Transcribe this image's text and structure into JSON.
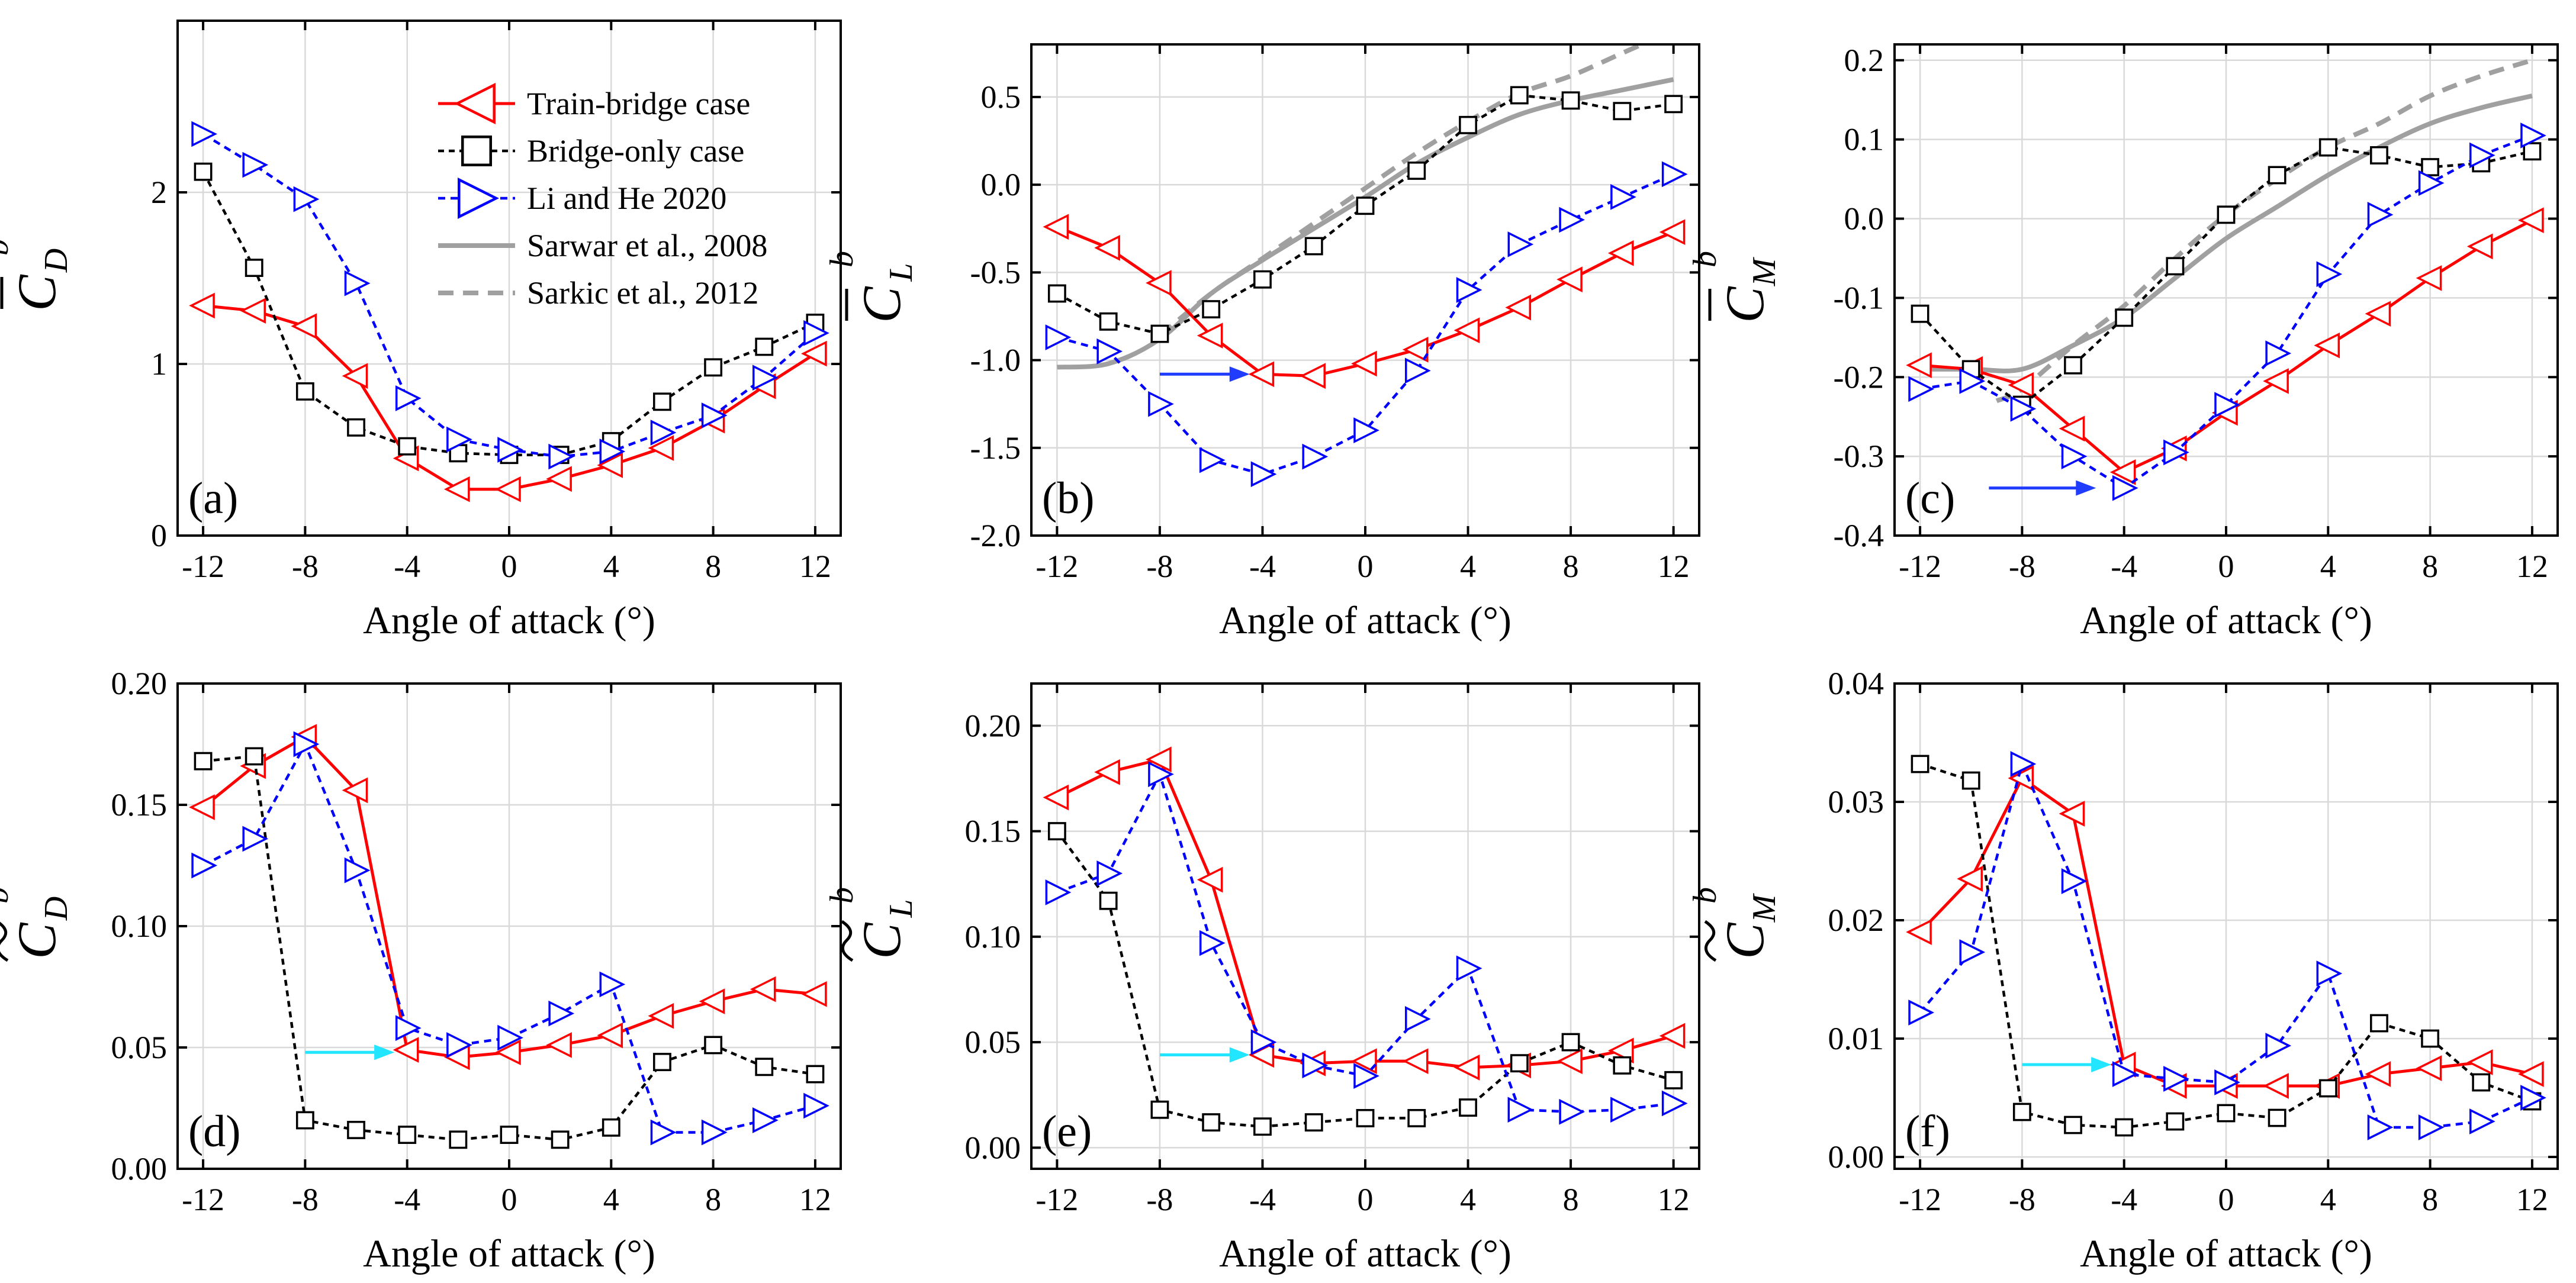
{
  "figure": {
    "xlabel": "Angle of  attack (°)",
    "x_ticks": [
      -12,
      -8,
      -4,
      0,
      4,
      8,
      12
    ],
    "colors": {
      "train_bridge": "#ff0000",
      "bridge_only": "#000000",
      "li_he": "#0000ff",
      "sarwar": "#a0a0a0",
      "sarkic": "#a0a0a0",
      "arrow_blue": "#1f3cff",
      "arrow_cyan": "#22e5ff"
    },
    "legend": [
      {
        "key": "train_bridge",
        "label": "Train-bridge case"
      },
      {
        "key": "bridge_only",
        "label": "Bridge-only case"
      },
      {
        "key": "li_he",
        "label": "Li and He 2020"
      },
      {
        "key": "sarwar",
        "label": "Sarwar et al., 2008"
      },
      {
        "key": "sarkic",
        "label": "Sarkic et al., 2012"
      }
    ]
  },
  "chart_data": [
    {
      "type": "line",
      "panel_label": "(a)",
      "ylabel_symbol": "C",
      "ylabel_sub": "D",
      "ylabel_sup": "b",
      "ylabel_accent": "bar",
      "xlim": [
        -13,
        13
      ],
      "ylim": [
        0,
        3.0
      ],
      "yticks": [
        0,
        1,
        2
      ],
      "ytick_labels": [
        "0",
        "1",
        "2"
      ],
      "show_legend": true,
      "series": [
        {
          "key": "train_bridge",
          "name": "Train-bridge case",
          "x": [
            -12,
            -10,
            -8,
            -6,
            -4,
            -2,
            0,
            2,
            4,
            6,
            8,
            10,
            12
          ],
          "values": [
            1.34,
            1.31,
            1.22,
            0.93,
            0.45,
            0.27,
            0.27,
            0.33,
            0.41,
            0.51,
            0.67,
            0.87,
            1.06
          ]
        },
        {
          "key": "bridge_only",
          "name": "Bridge-only case",
          "x": [
            -12,
            -10,
            -8,
            -6,
            -4,
            -2,
            0,
            2,
            4,
            6,
            8,
            10,
            12
          ],
          "values": [
            2.12,
            1.56,
            0.84,
            0.63,
            0.52,
            0.48,
            0.47,
            0.47,
            0.55,
            0.78,
            0.98,
            1.1,
            1.24
          ]
        },
        {
          "key": "li_he",
          "name": "Li and He 2020",
          "x": [
            -12,
            -10,
            -8,
            -6,
            -4,
            -2,
            0,
            2,
            4,
            6,
            8,
            10,
            12
          ],
          "values": [
            2.34,
            2.16,
            1.96,
            1.47,
            0.8,
            0.56,
            0.5,
            0.46,
            0.49,
            0.6,
            0.7,
            0.92,
            1.18
          ]
        }
      ],
      "annotations": []
    },
    {
      "type": "line",
      "panel_label": "(b)",
      "ylabel_symbol": "C",
      "ylabel_sub": "L",
      "ylabel_sup": "b",
      "ylabel_accent": "bar",
      "xlim": [
        -13,
        13
      ],
      "ylim": [
        -2.0,
        0.8
      ],
      "yticks": [
        -2.0,
        -1.5,
        -1.0,
        -0.5,
        0.0,
        0.5
      ],
      "ytick_labels": [
        "-2.0",
        "-1.5",
        "-1.0",
        "-0.5",
        "0.0",
        "0.5"
      ],
      "show_legend": false,
      "series": [
        {
          "key": "train_bridge",
          "name": "Train-bridge case",
          "x": [
            -12,
            -10,
            -8,
            -6,
            -4,
            -2,
            0,
            2,
            4,
            6,
            8,
            10,
            12
          ],
          "values": [
            -0.24,
            -0.36,
            -0.56,
            -0.86,
            -1.08,
            -1.09,
            -1.02,
            -0.94,
            -0.83,
            -0.7,
            -0.54,
            -0.39,
            -0.27
          ]
        },
        {
          "key": "bridge_only",
          "name": "Bridge-only case",
          "x": [
            -12,
            -10,
            -8,
            -6,
            -4,
            -2,
            0,
            2,
            4,
            6,
            8,
            10,
            12
          ],
          "values": [
            -0.62,
            -0.78,
            -0.85,
            -0.71,
            -0.54,
            -0.35,
            -0.12,
            0.08,
            0.34,
            0.51,
            0.48,
            0.42,
            0.46
          ]
        },
        {
          "key": "li_he",
          "name": "Li and He 2020",
          "x": [
            -12,
            -10,
            -8,
            -6,
            -4,
            -2,
            0,
            2,
            4,
            6,
            8,
            10,
            12
          ],
          "values": [
            -0.87,
            -0.95,
            -1.25,
            -1.57,
            -1.65,
            -1.55,
            -1.4,
            -1.06,
            -0.6,
            -0.34,
            -0.2,
            -0.07,
            0.06
          ]
        },
        {
          "key": "sarwar",
          "name": "Sarwar et al., 2008",
          "x": [
            -12,
            -10,
            -8,
            -6,
            -4,
            -2,
            0,
            2,
            4,
            6,
            8,
            10,
            12
          ],
          "values": [
            -1.04,
            -1.02,
            -0.88,
            -0.62,
            -0.43,
            -0.25,
            -0.07,
            0.12,
            0.27,
            0.4,
            0.48,
            0.54,
            0.6
          ]
        },
        {
          "key": "sarkic",
          "name": "Sarkic et al., 2012",
          "x": [
            -8,
            -6,
            -4,
            -2,
            0,
            2,
            4,
            6,
            8,
            10,
            12
          ],
          "values": [
            -0.86,
            -0.62,
            -0.42,
            -0.22,
            -0.02,
            0.18,
            0.36,
            0.52,
            0.62,
            0.75,
            0.88
          ]
        }
      ],
      "annotations": [
        {
          "color_key": "arrow_blue",
          "from": [
            -8.0,
            -1.08
          ],
          "to": [
            -4.5,
            -1.08
          ]
        }
      ]
    },
    {
      "type": "line",
      "panel_label": "(c)",
      "ylabel_symbol": "C",
      "ylabel_sub": "M",
      "ylabel_sup": "b",
      "ylabel_accent": "bar",
      "xlim": [
        -13,
        13
      ],
      "ylim": [
        -0.4,
        0.22
      ],
      "yticks": [
        -0.4,
        -0.3,
        -0.2,
        -0.1,
        0.0,
        0.1,
        0.2
      ],
      "ytick_labels": [
        "-0.4",
        "-0.3",
        "-0.2",
        "-0.1",
        "0.0",
        "0.1",
        "0.2"
      ],
      "show_legend": false,
      "series": [
        {
          "key": "train_bridge",
          "name": "Train-bridge case",
          "x": [
            -12,
            -10,
            -8,
            -6,
            -4,
            -2,
            0,
            2,
            4,
            6,
            8,
            10,
            12
          ],
          "values": [
            -0.185,
            -0.19,
            -0.21,
            -0.265,
            -0.32,
            -0.29,
            -0.245,
            -0.205,
            -0.16,
            -0.12,
            -0.075,
            -0.035,
            -0.002
          ]
        },
        {
          "key": "bridge_only",
          "name": "Bridge-only case",
          "x": [
            -12,
            -10,
            -8,
            -6,
            -4,
            -2,
            0,
            2,
            4,
            6,
            8,
            10,
            12
          ],
          "values": [
            -0.12,
            -0.19,
            -0.235,
            -0.185,
            -0.125,
            -0.06,
            0.005,
            0.055,
            0.09,
            0.08,
            0.065,
            0.07,
            0.085
          ]
        },
        {
          "key": "li_he",
          "name": "Li and He 2020",
          "x": [
            -12,
            -10,
            -8,
            -6,
            -4,
            -2,
            0,
            2,
            4,
            6,
            8,
            10,
            12
          ],
          "values": [
            -0.215,
            -0.205,
            -0.24,
            -0.3,
            -0.34,
            -0.295,
            -0.235,
            -0.17,
            -0.07,
            0.005,
            0.045,
            0.08,
            0.105
          ]
        },
        {
          "key": "sarwar",
          "name": "Sarwar et al., 2008",
          "x": [
            -12,
            -10,
            -8,
            -6,
            -4,
            -2,
            0,
            2,
            4,
            6,
            8,
            10,
            12
          ],
          "values": [
            -0.19,
            -0.19,
            -0.19,
            -0.16,
            -0.125,
            -0.075,
            -0.025,
            0.015,
            0.055,
            0.09,
            0.12,
            0.14,
            0.155
          ]
        },
        {
          "key": "sarkic",
          "name": "Sarkic et al., 2012",
          "x": [
            -9,
            -8,
            -6,
            -4,
            -2,
            0,
            2,
            4,
            6,
            8,
            10,
            12
          ],
          "values": [
            -0.23,
            -0.215,
            -0.16,
            -0.11,
            -0.05,
            0.005,
            0.05,
            0.09,
            0.12,
            0.155,
            0.18,
            0.2
          ]
        }
      ],
      "annotations": [
        {
          "color_key": "arrow_blue",
          "from": [
            -9.3,
            -0.34
          ],
          "to": [
            -5.1,
            -0.34
          ]
        }
      ]
    },
    {
      "type": "line",
      "panel_label": "(d)",
      "ylabel_symbol": "C",
      "ylabel_sub": "D",
      "ylabel_sup": "b",
      "ylabel_accent": "tilde",
      "xlim": [
        -13,
        13
      ],
      "ylim": [
        0,
        0.2
      ],
      "yticks": [
        0.0,
        0.05,
        0.1,
        0.15,
        0.2
      ],
      "ytick_labels": [
        "0.00",
        "0.05",
        "0.10",
        "0.15",
        "0.20"
      ],
      "show_legend": false,
      "series": [
        {
          "key": "train_bridge",
          "name": "Train-bridge case",
          "x": [
            -12,
            -10,
            -8,
            -6,
            -4,
            -2,
            0,
            2,
            4,
            6,
            8,
            10,
            12
          ],
          "values": [
            0.149,
            0.166,
            0.178,
            0.156,
            0.049,
            0.046,
            0.048,
            0.051,
            0.055,
            0.063,
            0.069,
            0.074,
            0.072
          ]
        },
        {
          "key": "bridge_only",
          "name": "Bridge-only case",
          "x": [
            -12,
            -10,
            -8,
            -6,
            -4,
            -2,
            0,
            2,
            4,
            6,
            8,
            10,
            12
          ],
          "values": [
            0.168,
            0.17,
            0.02,
            0.016,
            0.014,
            0.012,
            0.014,
            0.012,
            0.017,
            0.044,
            0.051,
            0.042,
            0.039
          ]
        },
        {
          "key": "li_he",
          "name": "Li and He 2020",
          "x": [
            -12,
            -10,
            -8,
            -6,
            -4,
            -2,
            0,
            2,
            4,
            6,
            8,
            10,
            12
          ],
          "values": [
            0.125,
            0.136,
            0.175,
            0.123,
            0.058,
            0.051,
            0.054,
            0.064,
            0.076,
            0.015,
            0.015,
            0.02,
            0.026
          ]
        }
      ],
      "annotations": [
        {
          "color_key": "arrow_cyan",
          "from": [
            -8.0,
            0.048
          ],
          "to": [
            -4.5,
            0.048
          ]
        }
      ]
    },
    {
      "type": "line",
      "panel_label": "(e)",
      "ylabel_symbol": "C",
      "ylabel_sub": "L",
      "ylabel_sup": "b",
      "ylabel_accent": "tilde",
      "xlim": [
        -13,
        13
      ],
      "ylim": [
        -0.01,
        0.22
      ],
      "yticks": [
        0.0,
        0.05,
        0.1,
        0.15,
        0.2
      ],
      "ytick_labels": [
        "0.00",
        "0.05",
        "0.10",
        "0.15",
        "0.20"
      ],
      "show_legend": false,
      "series": [
        {
          "key": "train_bridge",
          "name": "Train-bridge case",
          "x": [
            -12,
            -10,
            -8,
            -6,
            -4,
            -2,
            0,
            2,
            4,
            6,
            8,
            10,
            12
          ],
          "values": [
            0.166,
            0.178,
            0.184,
            0.127,
            0.044,
            0.04,
            0.041,
            0.041,
            0.038,
            0.039,
            0.041,
            0.046,
            0.053
          ]
        },
        {
          "key": "bridge_only",
          "name": "Bridge-only case",
          "x": [
            -12,
            -10,
            -8,
            -6,
            -4,
            -2,
            0,
            2,
            4,
            6,
            8,
            10,
            12
          ],
          "values": [
            0.15,
            0.117,
            0.018,
            0.012,
            0.01,
            0.012,
            0.014,
            0.014,
            0.019,
            0.04,
            0.05,
            0.039,
            0.032
          ]
        },
        {
          "key": "li_he",
          "name": "Li and He 2020",
          "x": [
            -12,
            -10,
            -8,
            -6,
            -4,
            -2,
            0,
            2,
            4,
            6,
            8,
            10,
            12
          ],
          "values": [
            0.121,
            0.13,
            0.177,
            0.097,
            0.05,
            0.039,
            0.034,
            0.061,
            0.085,
            0.018,
            0.017,
            0.018,
            0.021
          ]
        }
      ],
      "annotations": [
        {
          "color_key": "arrow_cyan",
          "from": [
            -8.0,
            0.044
          ],
          "to": [
            -4.5,
            0.044
          ]
        }
      ]
    },
    {
      "type": "line",
      "panel_label": "(f)",
      "ylabel_symbol": "C",
      "ylabel_sub": "M",
      "ylabel_sup": "b",
      "ylabel_accent": "tilde",
      "xlim": [
        -13,
        13
      ],
      "ylim": [
        -0.001,
        0.04
      ],
      "yticks": [
        0.0,
        0.01,
        0.02,
        0.03,
        0.04
      ],
      "ytick_labels": [
        "0.00",
        "0.01",
        "0.02",
        "0.03",
        "0.04"
      ],
      "show_legend": false,
      "series": [
        {
          "key": "train_bridge",
          "name": "Train-bridge case",
          "x": [
            -12,
            -10,
            -8,
            -6,
            -4,
            -2,
            0,
            2,
            4,
            6,
            8,
            10,
            12
          ],
          "values": [
            0.019,
            0.0235,
            0.032,
            0.029,
            0.0078,
            0.006,
            0.006,
            0.006,
            0.006,
            0.007,
            0.0075,
            0.008,
            0.007
          ]
        },
        {
          "key": "bridge_only",
          "name": "Bridge-only case",
          "x": [
            -12,
            -10,
            -8,
            -6,
            -4,
            -2,
            0,
            2,
            4,
            6,
            8,
            10,
            12
          ],
          "values": [
            0.0332,
            0.0318,
            0.0038,
            0.0027,
            0.0025,
            0.003,
            0.0037,
            0.0033,
            0.0058,
            0.0113,
            0.01,
            0.0063,
            0.0047
          ]
        },
        {
          "key": "li_he",
          "name": "Li and He 2020",
          "x": [
            -12,
            -10,
            -8,
            -6,
            -4,
            -2,
            0,
            2,
            4,
            6,
            8,
            10,
            12
          ],
          "values": [
            0.0122,
            0.0173,
            0.0332,
            0.0233,
            0.007,
            0.0066,
            0.0063,
            0.0094,
            0.0155,
            0.0025,
            0.0025,
            0.003,
            0.005
          ]
        }
      ],
      "annotations": [
        {
          "color_key": "arrow_cyan",
          "from": [
            -8.0,
            0.0078
          ],
          "to": [
            -4.5,
            0.0078
          ]
        }
      ]
    }
  ]
}
